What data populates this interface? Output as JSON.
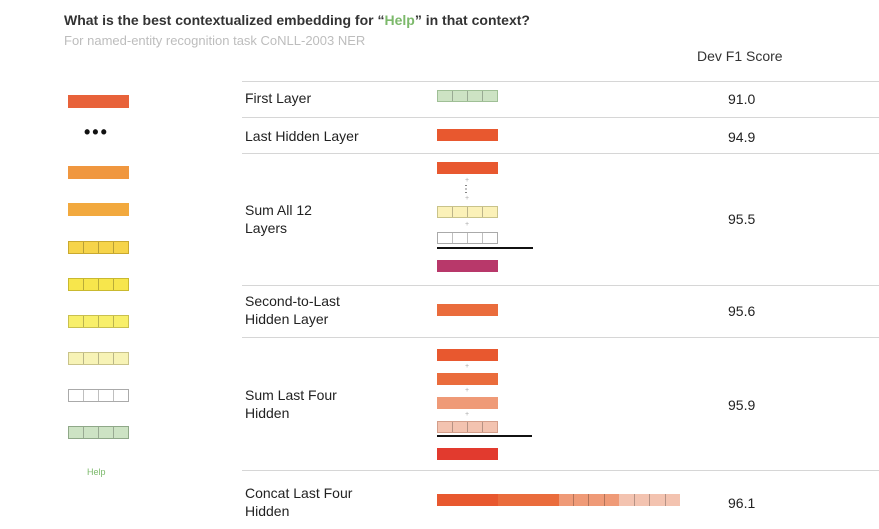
{
  "header": {
    "title_prefix": "What is the best contextualized embedding for “",
    "title_word": "Help",
    "title_suffix": "” in that context?",
    "subtitle": "For named-entity recognition task CoNLL-2003 NER",
    "column_header": "Dev F1 Score"
  },
  "left_stack": {
    "ellipsis": "•••",
    "token_label": "Help",
    "layer_colors": [
      "#e8623a",
      "#f0973f",
      "#f2a93e",
      "#f6d44a",
      "#f7e64c",
      "#f8ef6a",
      "#f7f3b6",
      "#ffffff",
      "#cde3c4"
    ]
  },
  "rows": [
    {
      "label": "First Layer",
      "score": "91.0"
    },
    {
      "label": "Last Hidden Layer",
      "score": "94.9"
    },
    {
      "label": "Sum All 12 Layers",
      "score": "95.5"
    },
    {
      "label": "Second-to-Last Hidden Layer",
      "score": "95.6"
    },
    {
      "label": "Sum Last Four Hidden",
      "score": "95.9"
    },
    {
      "label": "Concat Last Four Hidden",
      "score": "96.1"
    }
  ],
  "colors": {
    "embedding": "#cde3c4",
    "layer12": "#e8582f",
    "layer11": "#ea6c3c",
    "layer10": "#ef9a77",
    "layer9": "#f3c3b0",
    "layer2": "#fbf1b8",
    "sum12": "#b8386a",
    "sum4": "#e23a2e"
  }
}
